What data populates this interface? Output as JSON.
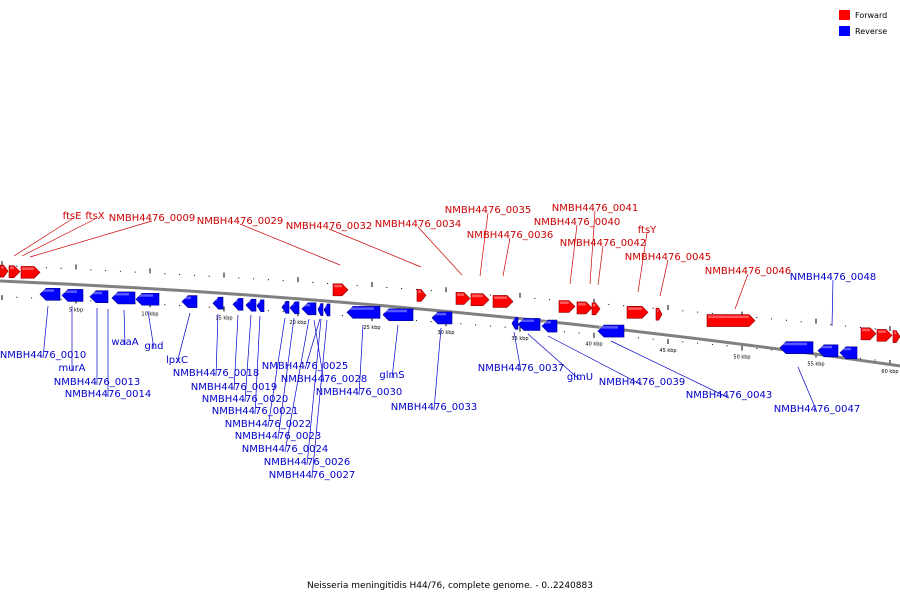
{
  "legend": [
    {
      "label": "Forward",
      "color": "#ff0000"
    },
    {
      "label": "Reverse",
      "color": "#0000ff"
    }
  ],
  "caption": "Neisseria meningitidis H44/76, complete genome. - 0..2240883",
  "scale_labels": [
    "5 kbp",
    "10 kbp",
    "15 kbp",
    "20 kbp",
    "25 kbp",
    "30 kbp",
    "35 kbp",
    "40 kbp",
    "45 kbp",
    "50 kbp",
    "55 kbp",
    "60 kbp"
  ],
  "forward_labels": [
    "ftsE",
    "ftsX",
    "NMBH4476_0009",
    "NMBH4476_0029",
    "NMBH4476_0032",
    "NMBH4476_0034",
    "NMBH4476_0035",
    "NMBH4476_0036",
    "NMBH4476_0041",
    "NMBH4476_0040",
    "NMBH4476_0042",
    "ftsY",
    "NMBH4476_0045",
    "NMBH4476_0046"
  ],
  "reverse_labels": [
    "NMBH4476_0010",
    "murA",
    "NMBH4476_0013",
    "NMBH4476_0014",
    "waaA",
    "gnd",
    "lpxC",
    "NMBH4476_0018",
    "NMBH4476_0019",
    "NMBH4476_0020",
    "NMBH4476_0021",
    "NMBH4476_0022",
    "NMBH4476_0023",
    "NMBH4476_0024",
    "NMBH4476_0025",
    "NMBH4476_0026",
    "NMBH4476_0027",
    "NMBH4476_0028",
    "glmS",
    "NMBH4476_0030",
    "NMBH4476_0033",
    "NMBH4476_0037",
    "glmU",
    "NMBH4476_0039",
    "NMBH4476_0043",
    "NMBH4476_0047",
    "NMBH4476_0048"
  ],
  "colors": {
    "forward": "#ff0000",
    "reverse": "#0000ff",
    "forward_label": "#cc0000",
    "reverse_label": "#0000cc",
    "backbone": "#808080"
  }
}
